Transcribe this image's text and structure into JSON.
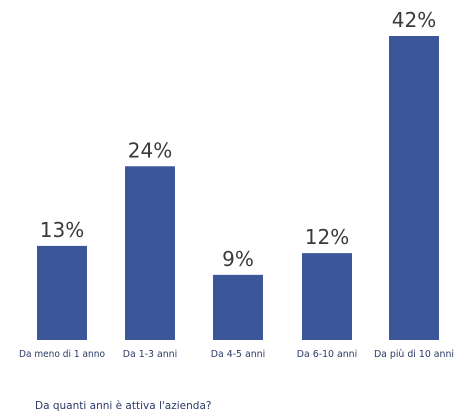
{
  "chart_data": {
    "type": "bar",
    "categories": [
      "Da meno di 1 anno",
      "Da 1-3 anni",
      "Da 4-5 anni",
      "Da 6-10 anni",
      "Da più di 10 anni"
    ],
    "values": [
      13,
      24,
      9,
      12,
      42
    ],
    "value_labels": [
      "13%",
      "24%",
      "9%",
      "12%",
      "42%"
    ],
    "unit": "%",
    "ylim": [
      0,
      42
    ],
    "grid": false,
    "bar_color": "#3b5699"
  },
  "caption": "Da quanti anni è attiva l'azienda?"
}
